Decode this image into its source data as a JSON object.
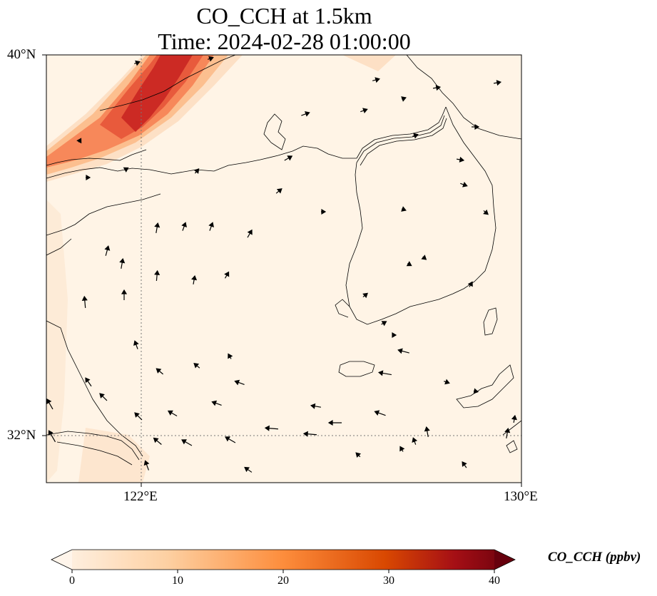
{
  "title": {
    "line1": "CO_CCH at 1.5km",
    "line2": "Time: 2024-02-28 01:00:00"
  },
  "map": {
    "lat_ticks": [
      "40°N",
      "32°N"
    ],
    "lon_ticks": [
      "122°E",
      "130°E"
    ],
    "extent": {
      "lon": [
        120,
        130
      ],
      "lat": [
        31,
        40
      ]
    },
    "background_color": "#fff4e6",
    "plume_colors": [
      "#fde0c5",
      "#fcbf8f",
      "#f7885a",
      "#e85a3c",
      "#cc2a24"
    ]
  },
  "colorbar": {
    "label": "CO_CCH (ppbv)",
    "ticks": [
      "0",
      "10",
      "20",
      "30",
      "40"
    ],
    "stops": [
      "#fff5eb",
      "#fdd0a2",
      "#fd8d3c",
      "#d94801",
      "#a50f15",
      "#67000d"
    ]
  }
}
